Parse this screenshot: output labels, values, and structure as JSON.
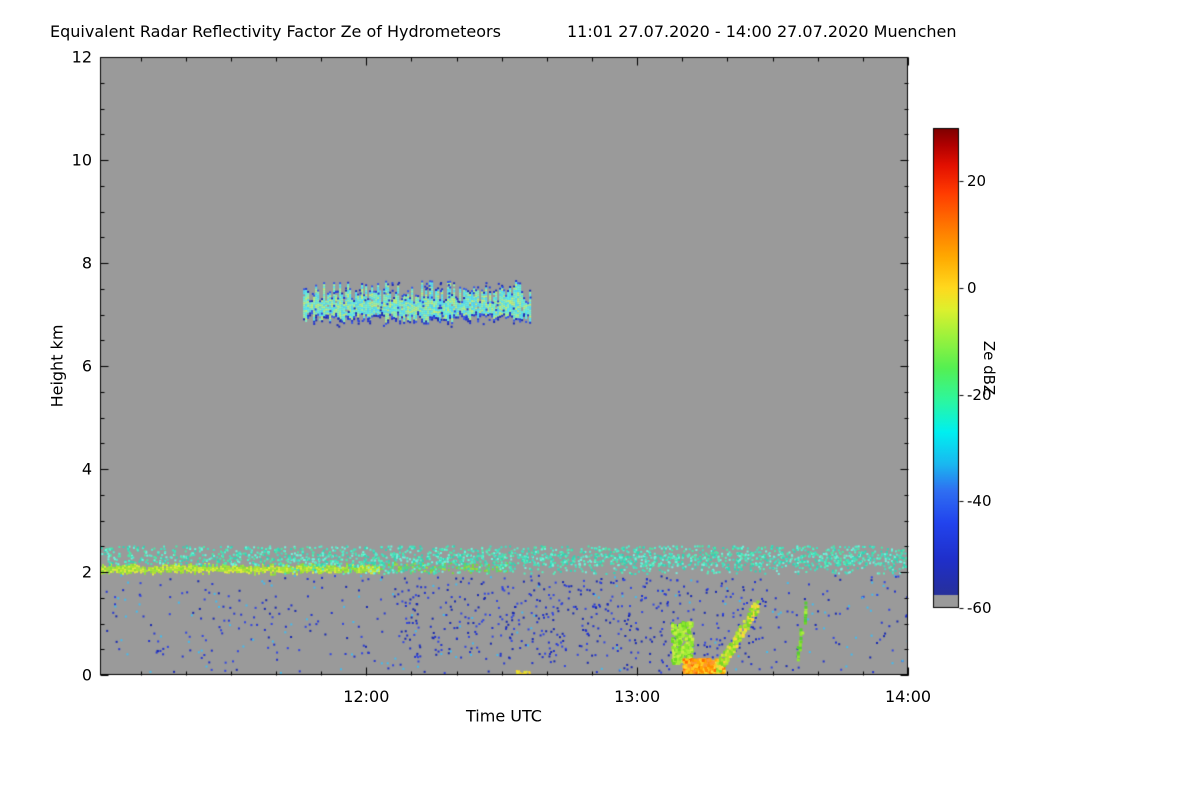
{
  "title": {
    "main": "Equivalent Radar Reflectivity Factor Ze of Hydrometeors",
    "period": "11:01 27.07.2020 - 14:00 27.07.2020 Muenchen"
  },
  "chart_data": {
    "type": "heatmap",
    "title": "Equivalent Radar Reflectivity Factor Ze of Hydrometeors",
    "period": "11:01 27.07.2020 - 14:00 27.07.2020 Muenchen",
    "station": "Muenchen",
    "xlabel": "Time UTC",
    "ylabel": "Height km",
    "background_color": "#9a9a9a",
    "background_meaning": "Ze below -60 dBZ (no detectable signal)",
    "x_axis": {
      "start_minute": 661,
      "end_minute": 840,
      "start_label": "11:01",
      "end_label": "14:00",
      "major_ticks": [
        {
          "minute": 720,
          "label": "12:00"
        },
        {
          "minute": 780,
          "label": "13:00"
        },
        {
          "minute": 840,
          "label": "14:00"
        }
      ],
      "minor_tick_minutes": 10
    },
    "y_axis": {
      "min": 0,
      "max": 12,
      "major_ticks": [
        0,
        2,
        4,
        6,
        8,
        10,
        12
      ],
      "minor_step": 0.5
    },
    "colorbar": {
      "label": "Ze dBZ",
      "min": -60,
      "max": 30,
      "ticks": [
        20,
        0,
        -20,
        -40,
        -60
      ],
      "stops": [
        {
          "v": -60,
          "c": "#9a9a9a"
        },
        {
          "v": -57.6,
          "c": "#9a9a9a"
        },
        {
          "v": -57.5,
          "c": "#27309b"
        },
        {
          "v": -51,
          "c": "#1f2fca"
        },
        {
          "v": -44,
          "c": "#2244ee"
        },
        {
          "v": -38,
          "c": "#2f6ff2"
        },
        {
          "v": -33,
          "c": "#1ab8f0"
        },
        {
          "v": -27,
          "c": "#00f0f0"
        },
        {
          "v": -21,
          "c": "#2df79e"
        },
        {
          "v": -15,
          "c": "#55f052"
        },
        {
          "v": -9,
          "c": "#9ef23c"
        },
        {
          "v": -4,
          "c": "#ddf02e"
        },
        {
          "v": 0,
          "c": "#ffd91e"
        },
        {
          "v": 6,
          "c": "#ffa800"
        },
        {
          "v": 12,
          "c": "#ff7300"
        },
        {
          "v": 18,
          "c": "#ff3a00"
        },
        {
          "v": 23,
          "c": "#e31000"
        },
        {
          "v": 27,
          "c": "#ad0000"
        },
        {
          "v": 30,
          "c": "#7d0000"
        }
      ]
    },
    "features": [
      {
        "name": "mid-level-cloud-layer",
        "render": "band",
        "t": [
          706,
          756.5
        ],
        "h": [
          6.9,
          7.45
        ],
        "top_jitter": 0.22,
        "bottom_jitter": 0.1,
        "cell": 2,
        "density": 0.97,
        "colors": [
          "#55e6f5",
          "#63eee0",
          "#7df2c8",
          "#97f2a8",
          "#bdf07d",
          "#52d8f5"
        ],
        "edge_colors": [
          "#2336cf",
          "#1b2ab5",
          "#3555e8"
        ],
        "ze_dbz": "-35 to -18",
        "time_utc": [
          "11:46",
          "12:36"
        ]
      },
      {
        "name": "cloud-edge-specks",
        "render": "scatter",
        "t": [
          705,
          757
        ],
        "h": [
          6.78,
          7.68
        ],
        "n": 90,
        "cell": 2,
        "colors": [
          "#2336cf",
          "#2a44dd",
          "#1b2ab5"
        ],
        "ze_dbz": "-50 to -40"
      },
      {
        "name": "boundary-layer-line",
        "render": "band",
        "t": [
          661,
          723
        ],
        "h": [
          1.98,
          2.13
        ],
        "top_jitter": 0.05,
        "bottom_jitter": 0.04,
        "cell": 2,
        "density": 0.95,
        "colors": [
          "#cdee35",
          "#aee62c",
          "#8ade3a",
          "#e2ee3a",
          "#9ce83f"
        ],
        "edge_colors": [],
        "ze_dbz": "about -10",
        "time_utc": [
          "11:01",
          "12:03"
        ]
      },
      {
        "name": "boundary-layer-line-patchy",
        "render": "band",
        "t": [
          723,
          752
        ],
        "h": [
          2.0,
          2.14
        ],
        "top_jitter": 0.06,
        "bottom_jitter": 0.04,
        "cell": 2,
        "density": 0.55,
        "colors": [
          "#9ade3a",
          "#7ad83a",
          "#55d87a",
          "#44d8aa"
        ],
        "edge_colors": []
      },
      {
        "name": "layer-top-specks",
        "render": "scatter",
        "t": [
          661,
          840
        ],
        "h": [
          2.14,
          2.52
        ],
        "n": 1500,
        "cell": 2,
        "colors": [
          "#3fe0c0",
          "#52eecb",
          "#2fd4b4",
          "#6cf5dd",
          "#49e8a8"
        ],
        "ze_dbz": "-30 to -22"
      },
      {
        "name": "layer-top-specks-2",
        "render": "scatter",
        "t": [
          700,
          840
        ],
        "h": [
          1.98,
          2.36
        ],
        "n": 700,
        "cell": 2,
        "colors": [
          "#3fe0c0",
          "#55eebb",
          "#2fd4b4",
          "#77eedd"
        ]
      },
      {
        "name": "low-level-blue-specks",
        "render": "scatter",
        "t": [
          661,
          840
        ],
        "h": [
          0.05,
          1.95
        ],
        "n": 520,
        "cell": 2,
        "colors": [
          "#2233cc",
          "#1a2ab0",
          "#3447e0",
          "#2a3ad0",
          "#44bbee"
        ],
        "ze_dbz": "-55 to -45"
      },
      {
        "name": "low-level-blue-cluster",
        "render": "scatter",
        "t": [
          726,
          808
        ],
        "h": [
          0.35,
          1.9
        ],
        "n": 330,
        "cell": 2,
        "colors": [
          "#2233cc",
          "#3447e0",
          "#1a2ab0"
        ]
      },
      {
        "name": "plume-green-left",
        "render": "scatter",
        "t": [
          787.5,
          792
        ],
        "h": [
          0.25,
          1.05
        ],
        "n": 240,
        "cell": 3,
        "colors": [
          "#8ce62e",
          "#a8ee3a",
          "#6cd826",
          "#c8ee44"
        ],
        "ze_dbz": "-15 to -8",
        "time_utc": [
          "13:08",
          "13:12"
        ]
      },
      {
        "name": "plume-orange-core",
        "render": "scatter",
        "t": [
          790,
          799
        ],
        "h": [
          0.0,
          0.33
        ],
        "n": 430,
        "cell": 3,
        "colors": [
          "#ffaa00",
          "#ff8c00",
          "#ffc81e",
          "#ff9830",
          "#ffe23a",
          "#ff6a00"
        ],
        "ze_dbz": "0 to +10",
        "time_utc": [
          "13:10",
          "13:19"
        ]
      },
      {
        "name": "plume-rising-band",
        "render": "diagonal",
        "p0": [
          797.5,
          0.12
        ],
        "p1": [
          806.5,
          1.4
        ],
        "thick": 0.3,
        "cell": 3,
        "density": 0.8,
        "colors": [
          "#aee62c",
          "#8ade2a",
          "#d4e83a",
          "#ffd83a",
          "#7ad826"
        ],
        "ze_dbz": "-12 to -2",
        "time_utc": [
          "13:18",
          "13:27"
        ]
      },
      {
        "name": "plume-right-streak",
        "render": "diagonal",
        "p0": [
          815.3,
          0.45
        ],
        "p1": [
          817.2,
          1.32
        ],
        "thick": 0.26,
        "cell": 3,
        "density": 0.75,
        "colors": [
          "#8ce62e",
          "#6cd826",
          "#a8ee3a",
          "#55cc33"
        ],
        "time_utc": [
          "13:35",
          "13:38"
        ]
      },
      {
        "name": "surface-yellow-dash",
        "render": "scatter",
        "t": [
          753,
          756
        ],
        "h": [
          0.0,
          0.1
        ],
        "n": 25,
        "cell": 2,
        "colors": [
          "#ffd820",
          "#e8e830"
        ]
      }
    ]
  }
}
